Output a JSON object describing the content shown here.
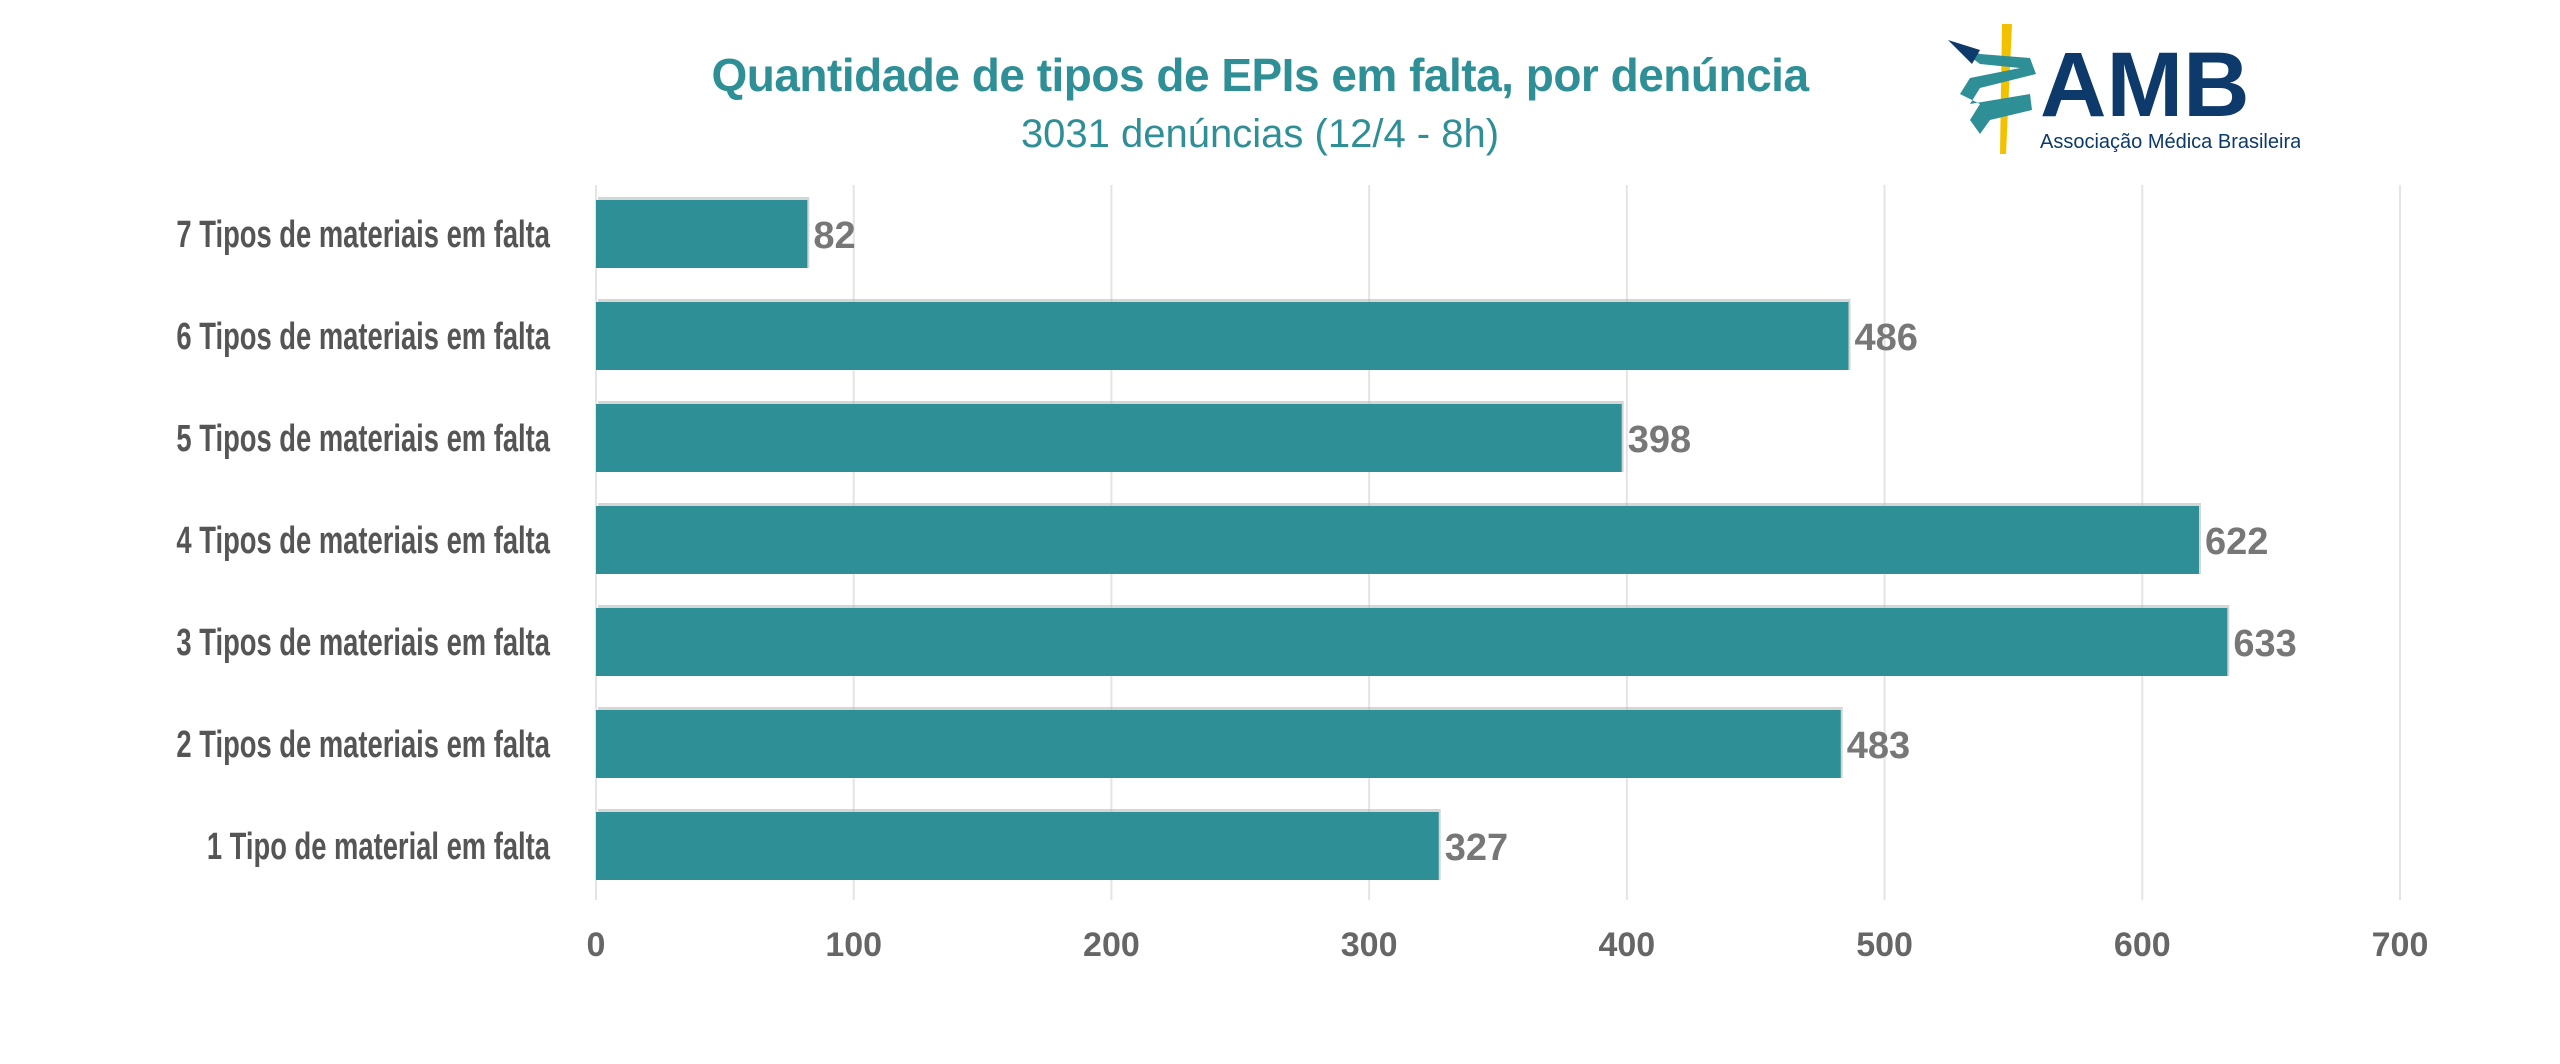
{
  "chart_data": {
    "type": "bar",
    "orientation": "horizontal",
    "title": "Quantidade de tipos de EPIs em falta, por denúncia",
    "subtitle": "3031 denúncias (12/4 - 8h)",
    "categories": [
      "7 Tipos de materiais em falta",
      "6 Tipos de materiais em falta",
      "5 Tipos de materiais em falta",
      "4 Tipos de materiais em falta",
      "3 Tipos de materiais em falta",
      "2 Tipos de materiais em falta",
      "1 Tipo de material em falta"
    ],
    "values": [
      82,
      486,
      398,
      622,
      633,
      483,
      327
    ],
    "xlim": [
      0,
      700
    ],
    "xticks": [
      0,
      100,
      200,
      300,
      400,
      500,
      600,
      700
    ],
    "xlabel": "",
    "ylabel": "",
    "grid": true,
    "bar_color": "#2f8f96"
  },
  "logo": {
    "text": "AMB",
    "tagline": "Associação Médica Brasileira",
    "colors": {
      "navy": "#0d3a6b",
      "teal": "#2f8f96",
      "yellow": "#f2c200"
    }
  }
}
